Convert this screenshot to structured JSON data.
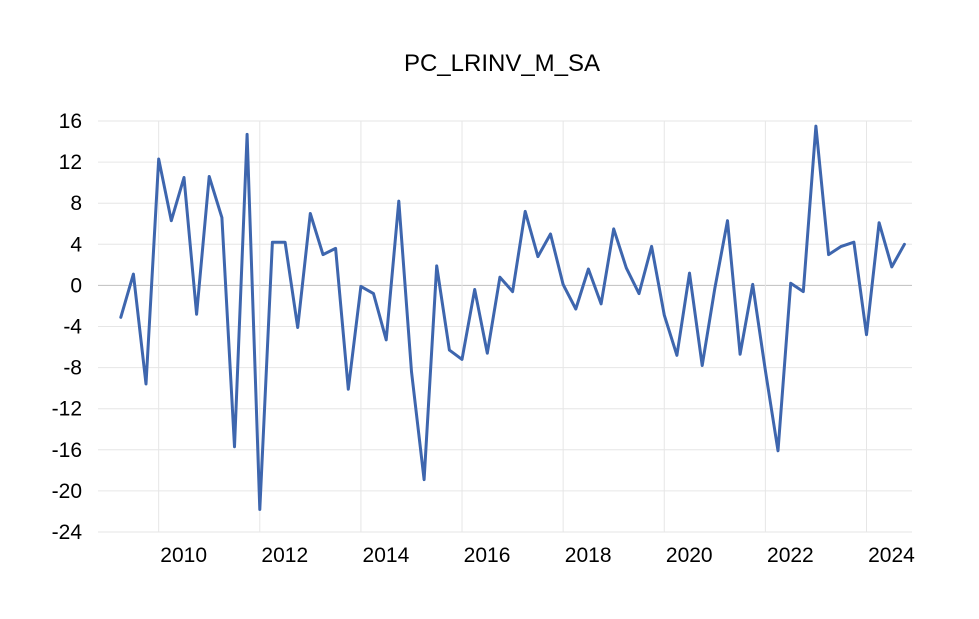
{
  "chart_data": {
    "type": "line",
    "title": "PC_LRINV_M_SA",
    "xlabel": "",
    "ylabel": "",
    "ylim": [
      -24,
      16
    ],
    "y_ticks": [
      16,
      12,
      8,
      4,
      0,
      -4,
      -8,
      -12,
      -16,
      -20,
      -24
    ],
    "xlim": [
      2008.8,
      2024.9
    ],
    "x_ticks": [
      2010,
      2012,
      2014,
      2016,
      2018,
      2020,
      2022,
      2024
    ],
    "grid": true,
    "legend": "none",
    "colors": {
      "series": "#3E66AE"
    },
    "series": [
      {
        "x": [
          2009.25,
          2009.5,
          2009.75,
          2010.0,
          2010.25,
          2010.5,
          2010.75,
          2011.0,
          2011.25,
          2011.5,
          2011.75,
          2012.0,
          2012.25,
          2012.5,
          2012.75,
          2013.0,
          2013.25,
          2013.5,
          2013.75,
          2014.0,
          2014.25,
          2014.5,
          2014.75,
          2015.0,
          2015.25,
          2015.5,
          2015.75,
          2016.0,
          2016.25,
          2016.5,
          2016.75,
          2017.0,
          2017.25,
          2017.5,
          2017.75,
          2018.0,
          2018.25,
          2018.5,
          2018.75,
          2019.0,
          2019.25,
          2019.5,
          2019.75,
          2020.0,
          2020.25,
          2020.5,
          2020.75,
          2021.0,
          2021.25,
          2021.5,
          2021.75,
          2022.0,
          2022.25,
          2022.5,
          2022.75,
          2023.0,
          2023.25,
          2023.5,
          2023.75,
          2024.0,
          2024.25,
          2024.5,
          2024.75
        ],
        "values": [
          -3.1,
          1.1,
          -9.6,
          12.3,
          6.3,
          10.5,
          -2.8,
          10.6,
          6.6,
          -15.7,
          14.7,
          -21.8,
          4.2,
          4.2,
          -4.1,
          7.0,
          3.0,
          3.6,
          -10.1,
          -0.1,
          -0.8,
          -5.3,
          8.2,
          -8.4,
          -18.9,
          1.9,
          -6.3,
          -7.2,
          -0.4,
          -6.6,
          0.8,
          -0.6,
          7.2,
          2.8,
          5.0,
          0.1,
          -2.3,
          1.6,
          -1.8,
          5.5,
          1.7,
          -0.8,
          3.8,
          -2.9,
          -6.8,
          1.2,
          -7.8,
          -0.3,
          6.3,
          -6.7,
          0.1,
          -8.3,
          -16.1,
          0.2,
          -0.6,
          15.5,
          3.0,
          3.8,
          4.2,
          -4.8,
          6.1,
          1.8,
          4.0
        ]
      }
    ]
  }
}
